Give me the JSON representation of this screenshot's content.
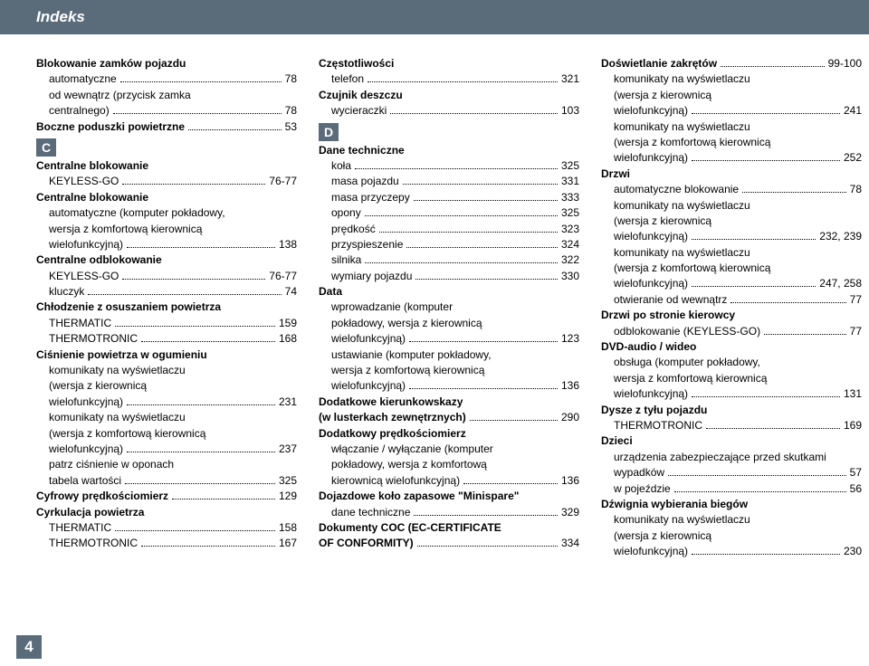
{
  "header": "Indeks",
  "pageNumber": "4",
  "columns": [
    [
      {
        "type": "head",
        "text": "Blokowanie zamków pojazdu"
      },
      {
        "type": "entry",
        "cls": "sub",
        "label": "automatyczne",
        "page": "78"
      },
      {
        "type": "wrap",
        "cls": "sub",
        "text": "od wewnątrz (przycisk zamka"
      },
      {
        "type": "entry",
        "cls": "sub",
        "label": "centralnego)",
        "page": "78"
      },
      {
        "type": "entry",
        "cls": "",
        "label": "Boczne poduszki powietrzne",
        "bold": true,
        "page": "53"
      },
      {
        "type": "section",
        "text": "C"
      },
      {
        "type": "head",
        "text": "Centralne blokowanie"
      },
      {
        "type": "entry",
        "cls": "sub",
        "label": "KEYLESS-GO",
        "page": "76-77"
      },
      {
        "type": "head",
        "text": "Centralne blokowanie"
      },
      {
        "type": "wrap",
        "cls": "sub",
        "text": "automatyczne (komputer pokładowy,"
      },
      {
        "type": "wrap",
        "cls": "sub",
        "text": "wersja z komfortową kierownicą"
      },
      {
        "type": "entry",
        "cls": "sub",
        "label": "wielofunkcyjną)",
        "page": "138"
      },
      {
        "type": "head",
        "text": "Centralne odblokowanie"
      },
      {
        "type": "entry",
        "cls": "sub",
        "label": "KEYLESS-GO",
        "page": "76-77"
      },
      {
        "type": "entry",
        "cls": "sub",
        "label": "kluczyk",
        "page": "74"
      },
      {
        "type": "head",
        "text": "Chłodzenie z osuszaniem powietrza"
      },
      {
        "type": "entry",
        "cls": "sub",
        "label": "THERMATIC",
        "page": "159"
      },
      {
        "type": "entry",
        "cls": "sub",
        "label": "THERMOTRONIC",
        "page": "168"
      },
      {
        "type": "head",
        "text": "Ciśnienie powietrza w ogumieniu"
      },
      {
        "type": "wrap",
        "cls": "sub",
        "text": "komunikaty na wyświetlaczu"
      },
      {
        "type": "wrap",
        "cls": "sub",
        "text": "(wersja z kierownicą"
      },
      {
        "type": "entry",
        "cls": "sub",
        "label": "wielofunkcyjną)",
        "page": "231"
      },
      {
        "type": "wrap",
        "cls": "sub",
        "text": "komunikaty na wyświetlaczu"
      },
      {
        "type": "wrap",
        "cls": "sub",
        "text": "(wersja z komfortową kierownicą"
      },
      {
        "type": "entry",
        "cls": "sub",
        "label": "wielofunkcyjną)",
        "page": "237"
      },
      {
        "type": "wrap",
        "cls": "sub",
        "text": "patrz ciśnienie w oponach"
      },
      {
        "type": "entry",
        "cls": "sub",
        "label": "tabela wartości",
        "page": "325"
      },
      {
        "type": "entry",
        "cls": "",
        "label": "Cyfrowy prędkościomierz",
        "bold": true,
        "page": "129"
      },
      {
        "type": "head",
        "text": "Cyrkulacja powietrza"
      },
      {
        "type": "entry",
        "cls": "sub",
        "label": "THERMATIC",
        "page": "158"
      },
      {
        "type": "entry",
        "cls": "sub",
        "label": "THERMOTRONIC",
        "page": "167"
      }
    ],
    [
      {
        "type": "head",
        "text": "Częstotliwości"
      },
      {
        "type": "entry",
        "cls": "sub",
        "label": "telefon",
        "page": "321"
      },
      {
        "type": "head",
        "text": "Czujnik deszczu"
      },
      {
        "type": "entry",
        "cls": "sub",
        "label": "wycieraczki",
        "page": "103"
      },
      {
        "type": "section",
        "text": "D"
      },
      {
        "type": "head",
        "text": "Dane techniczne"
      },
      {
        "type": "entry",
        "cls": "sub",
        "label": "koła",
        "page": "325"
      },
      {
        "type": "entry",
        "cls": "sub",
        "label": "masa pojazdu",
        "page": "331"
      },
      {
        "type": "entry",
        "cls": "sub",
        "label": "masa przyczepy",
        "page": "333"
      },
      {
        "type": "entry",
        "cls": "sub",
        "label": "opony",
        "page": "325"
      },
      {
        "type": "entry",
        "cls": "sub",
        "label": "prędkość",
        "page": "323"
      },
      {
        "type": "entry",
        "cls": "sub",
        "label": "przyspieszenie",
        "page": "324"
      },
      {
        "type": "entry",
        "cls": "sub",
        "label": "silnika",
        "page": "322"
      },
      {
        "type": "entry",
        "cls": "sub",
        "label": "wymiary pojazdu",
        "page": "330"
      },
      {
        "type": "head",
        "text": "Data"
      },
      {
        "type": "wrap",
        "cls": "sub",
        "text": "wprowadzanie (komputer"
      },
      {
        "type": "wrap",
        "cls": "sub",
        "text": "pokładowy, wersja z kierownicą"
      },
      {
        "type": "entry",
        "cls": "sub",
        "label": "wielofunkcyjną)",
        "page": "123"
      },
      {
        "type": "wrap",
        "cls": "sub",
        "text": "ustawianie (komputer pokładowy,"
      },
      {
        "type": "wrap",
        "cls": "sub",
        "text": "wersja z komfortową kierownicą"
      },
      {
        "type": "entry",
        "cls": "sub",
        "label": "wielofunkcyjną)",
        "page": "136"
      },
      {
        "type": "head",
        "text": "Dodatkowe kierunkowskazy"
      },
      {
        "type": "entry",
        "cls": "",
        "label": "(w lusterkach zewnętrznych)",
        "bold": true,
        "page": "290"
      },
      {
        "type": "head",
        "text": "Dodatkowy prędkościomierz"
      },
      {
        "type": "wrap",
        "cls": "sub",
        "text": "włączanie / wyłączanie (komputer"
      },
      {
        "type": "wrap",
        "cls": "sub",
        "text": "pokładowy, wersja z komfortową"
      },
      {
        "type": "entry",
        "cls": "sub",
        "label": "kierownicą wielofunkcyjną)",
        "page": "136"
      },
      {
        "type": "head",
        "text": "Dojazdowe koło zapasowe \"Minispare\""
      },
      {
        "type": "entry",
        "cls": "sub",
        "label": "dane techniczne",
        "page": "329"
      },
      {
        "type": "head",
        "text": "Dokumenty COC (EC-CERTIFICATE"
      },
      {
        "type": "entry",
        "cls": "",
        "label": "OF CONFORMITY)",
        "bold": true,
        "page": "334"
      }
    ],
    [
      {
        "type": "entry",
        "cls": "",
        "label": "Doświetlanie zakrętów",
        "bold": true,
        "page": "99-100"
      },
      {
        "type": "wrap",
        "cls": "sub",
        "text": "komunikaty na wyświetlaczu"
      },
      {
        "type": "wrap",
        "cls": "sub",
        "text": "(wersja z kierownicą"
      },
      {
        "type": "entry",
        "cls": "sub",
        "label": "wielofunkcyjną)",
        "page": "241"
      },
      {
        "type": "wrap",
        "cls": "sub",
        "text": "komunikaty na wyświetlaczu"
      },
      {
        "type": "wrap",
        "cls": "sub",
        "text": "(wersja z komfortową kierownicą"
      },
      {
        "type": "entry",
        "cls": "sub",
        "label": "wielofunkcyjną)",
        "page": "252"
      },
      {
        "type": "head",
        "text": "Drzwi"
      },
      {
        "type": "entry",
        "cls": "sub",
        "label": "automatyczne blokowanie",
        "page": "78"
      },
      {
        "type": "wrap",
        "cls": "sub",
        "text": "komunikaty na wyświetlaczu"
      },
      {
        "type": "wrap",
        "cls": "sub",
        "text": "(wersja z kierownicą"
      },
      {
        "type": "entry",
        "cls": "sub",
        "label": "wielofunkcyjną)",
        "page": "232, 239"
      },
      {
        "type": "wrap",
        "cls": "sub",
        "text": "komunikaty na wyświetlaczu"
      },
      {
        "type": "wrap",
        "cls": "sub",
        "text": "(wersja z komfortową kierownicą"
      },
      {
        "type": "entry",
        "cls": "sub",
        "label": "wielofunkcyjną)",
        "page": "247, 258"
      },
      {
        "type": "entry",
        "cls": "sub",
        "label": "otwieranie od wewnątrz",
        "page": "77"
      },
      {
        "type": "head",
        "text": "Drzwi po stronie kierowcy"
      },
      {
        "type": "entry",
        "cls": "sub",
        "label": "odblokowanie (KEYLESS-GO)",
        "page": "77"
      },
      {
        "type": "head",
        "text": "DVD-audio / wideo"
      },
      {
        "type": "wrap",
        "cls": "sub",
        "text": "obsługa (komputer pokładowy,"
      },
      {
        "type": "wrap",
        "cls": "sub",
        "text": "wersja z komfortową kierownicą"
      },
      {
        "type": "entry",
        "cls": "sub",
        "label": "wielofunkcyjną)",
        "page": "131"
      },
      {
        "type": "head",
        "text": "Dysze z tyłu pojazdu"
      },
      {
        "type": "entry",
        "cls": "sub",
        "label": "THERMOTRONIC",
        "page": "169"
      },
      {
        "type": "head",
        "text": "Dzieci"
      },
      {
        "type": "wrap",
        "cls": "sub",
        "text": "urządzenia zabezpieczające przed skutkami"
      },
      {
        "type": "entry",
        "cls": "sub",
        "label": "wypadków",
        "page": "57"
      },
      {
        "type": "entry",
        "cls": "sub",
        "label": "w pojeździe",
        "page": "56"
      },
      {
        "type": "head",
        "text": "Dźwignia wybierania biegów"
      },
      {
        "type": "wrap",
        "cls": "sub",
        "text": "komunikaty na wyświetlaczu"
      },
      {
        "type": "wrap",
        "cls": "sub",
        "text": "(wersja z kierownicą"
      },
      {
        "type": "entry",
        "cls": "sub",
        "label": "wielofunkcyjną)",
        "page": "230"
      }
    ]
  ]
}
